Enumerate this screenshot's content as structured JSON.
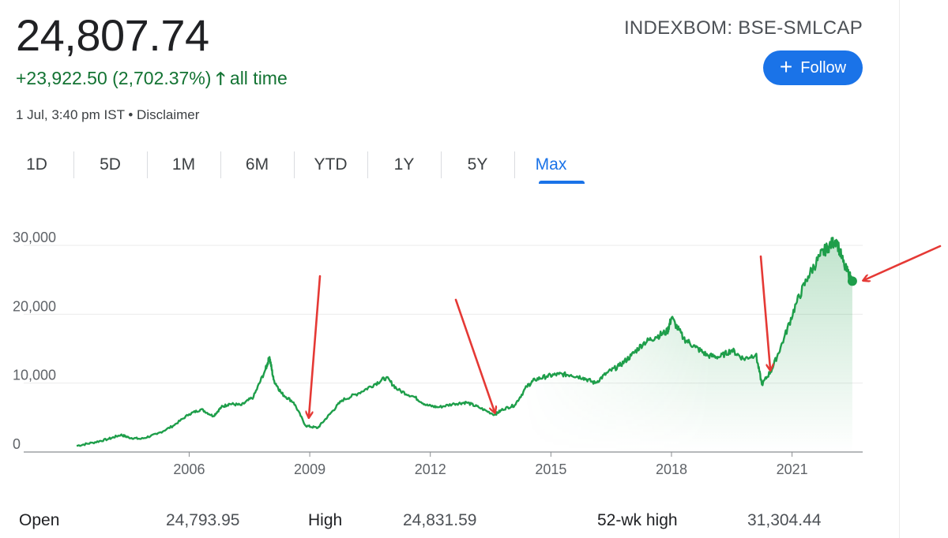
{
  "quote": {
    "price": "24,807.74",
    "change": "+23,922.50 (2,702.37%)",
    "change_arrow": "🡑",
    "change_period": "all time",
    "timestamp": "1 Jul, 3:40 pm IST • Disclaimer",
    "ticker": "INDEXBOM: BSE-SMLCAP",
    "follow_label": "Follow",
    "follow_icon": "plus-icon"
  },
  "tabs": [
    "1D",
    "5D",
    "1M",
    "6M",
    "YTD",
    "1Y",
    "5Y",
    "Max"
  ],
  "active_tab": "Max",
  "colors": {
    "positive": "#137333",
    "line": "#1e9e4a",
    "accent": "#1a73e8",
    "annotation": "#e53935"
  },
  "stats": {
    "open_label": "Open",
    "open_value": "24,793.95",
    "high_label": "High",
    "high_value": "24,831.59",
    "wk52_label": "52-wk high",
    "wk52_value": "31,304.44"
  },
  "chart_data": {
    "type": "area",
    "title": "",
    "xlabel": "",
    "ylabel": "",
    "ylim": [
      0,
      30000
    ],
    "yticks": [
      0,
      10000,
      20000,
      30000
    ],
    "ytick_labels": [
      "0",
      "10,000",
      "20,000",
      "30,000"
    ],
    "xticks": [
      2006,
      2009,
      2012,
      2015,
      2018,
      2021
    ],
    "xtick_labels": [
      "2006",
      "2009",
      "2012",
      "2015",
      "2018",
      "2021"
    ],
    "xlim": [
      2003.2,
      2022.6
    ],
    "grid": true,
    "series": [
      {
        "x": [
          2003.2,
          2003.6,
          2004.0,
          2004.3,
          2004.5,
          2004.8,
          2005.2,
          2005.6,
          2006.0,
          2006.3,
          2006.6,
          2006.8,
          2007.0,
          2007.3,
          2007.6,
          2007.9,
          2008.0,
          2008.1,
          2008.3,
          2008.6,
          2008.9,
          2009.2,
          2009.5,
          2009.8,
          2010.2,
          2010.6,
          2010.9,
          2011.2,
          2011.6,
          2011.9,
          2012.2,
          2012.6,
          2012.9,
          2013.2,
          2013.6,
          2013.8,
          2014.1,
          2014.4,
          2014.6,
          2014.9,
          2015.2,
          2015.5,
          2015.8,
          2016.1,
          2016.4,
          2016.7,
          2017.0,
          2017.3,
          2017.6,
          2017.9,
          2018.0,
          2018.3,
          2018.6,
          2018.9,
          2019.2,
          2019.5,
          2019.8,
          2020.1,
          2020.25,
          2020.5,
          2020.8,
          2021.1,
          2021.4,
          2021.7,
          2021.9,
          2022.1,
          2022.3,
          2022.5
        ],
        "values": [
          900,
          1350,
          1900,
          2500,
          2100,
          1900,
          2600,
          3800,
          5500,
          6200,
          5200,
          6500,
          7000,
          6800,
          8000,
          12000,
          13800,
          10500,
          8500,
          7200,
          3800,
          3500,
          5500,
          7500,
          8500,
          9800,
          10800,
          9000,
          8000,
          6800,
          6500,
          7000,
          7200,
          6500,
          5400,
          6200,
          6800,
          9500,
          10500,
          11000,
          11300,
          11200,
          10800,
          10000,
          11500,
          12500,
          14000,
          15800,
          16700,
          17500,
          19500,
          16500,
          15200,
          14000,
          13800,
          14800,
          13500,
          14200,
          9800,
          12000,
          16500,
          21500,
          25500,
          28500,
          29800,
          30800,
          27000,
          24807.74
        ]
      }
    ]
  }
}
